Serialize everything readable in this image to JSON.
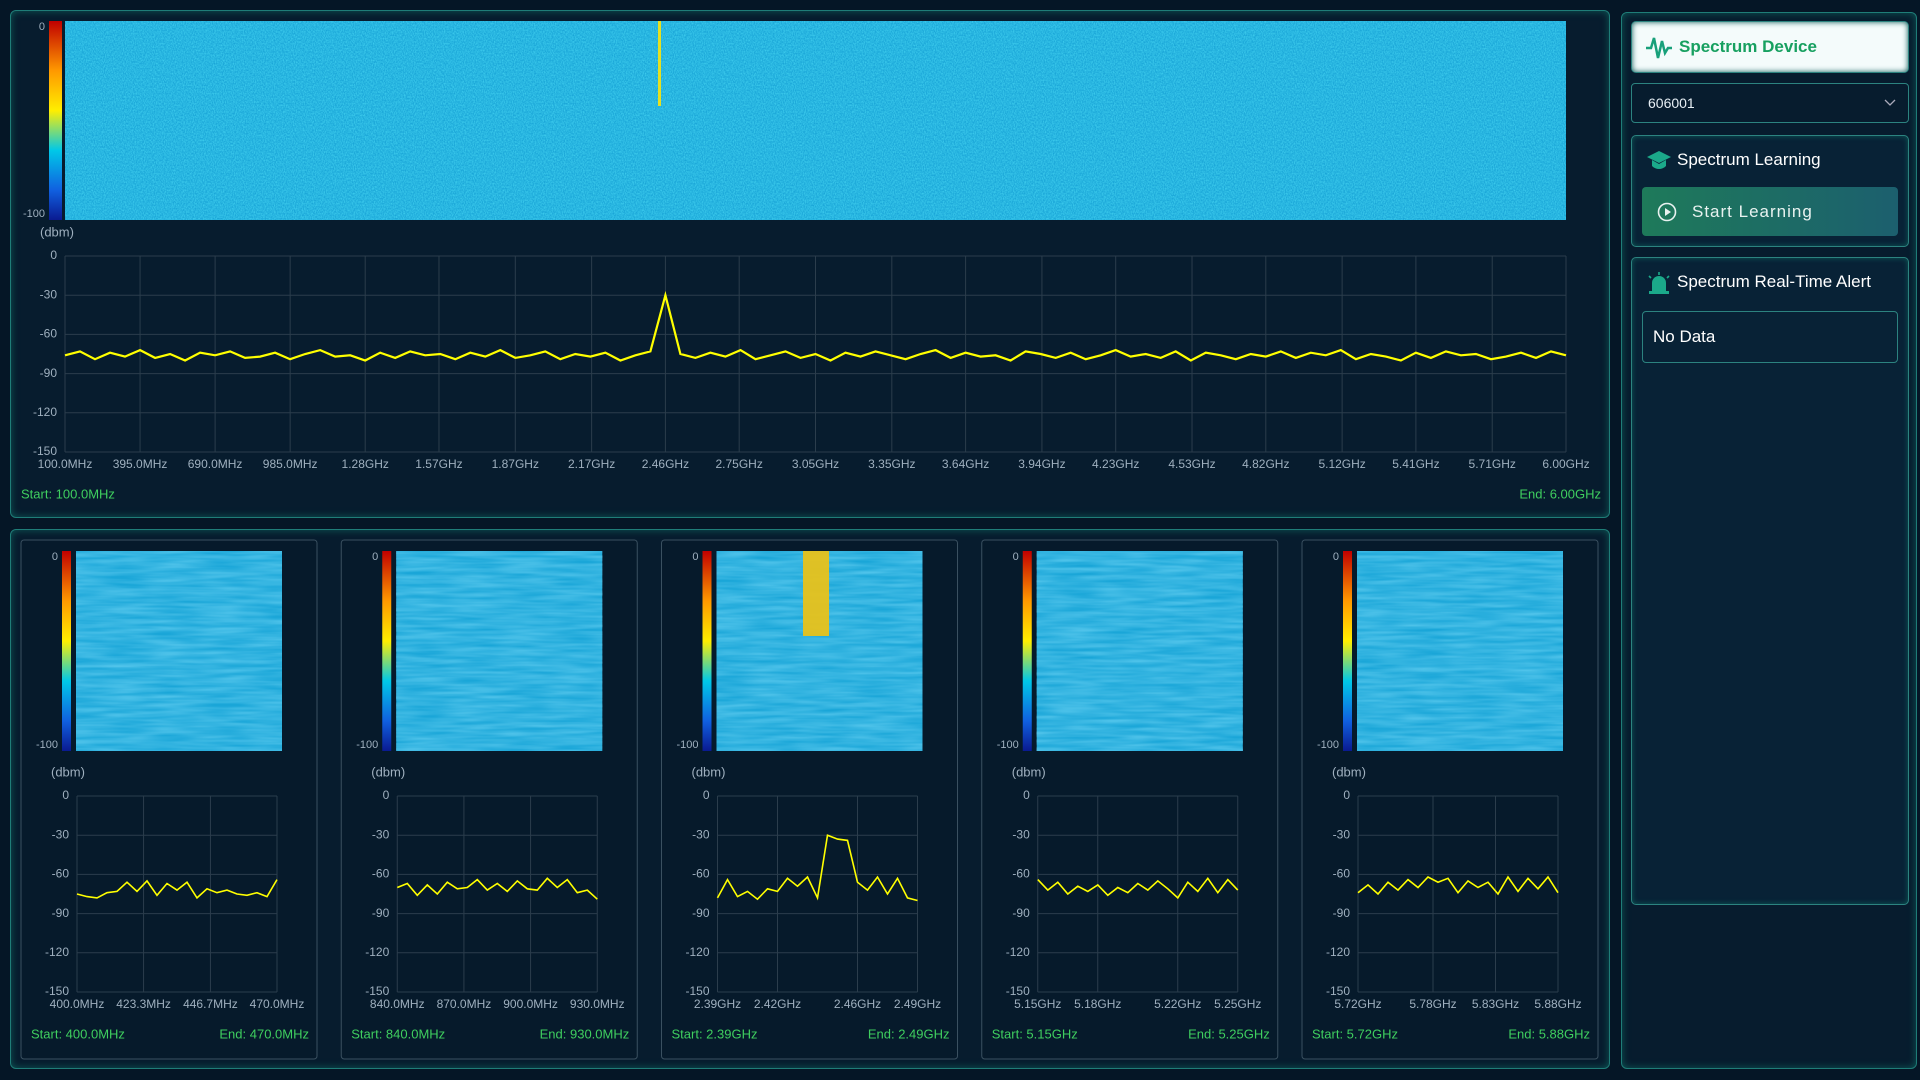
{
  "chart_data": [
    {
      "type": "line",
      "y_label": "(dbm)",
      "colorbar_ticks": [
        0,
        -100
      ],
      "color": "#ffff00",
      "x": [
        100,
        159,
        218,
        277,
        336,
        395,
        454,
        513,
        572,
        631,
        690,
        749,
        808,
        867,
        926,
        985,
        1044,
        1103,
        1162,
        1221,
        1280,
        1339,
        1398,
        1457,
        1516,
        1575,
        1634,
        1693,
        1752,
        1811,
        1870,
        1929,
        1988,
        2047,
        2106,
        2165,
        2224,
        2283,
        2342,
        2401,
        2460,
        2519,
        2578,
        2637,
        2696,
        2755,
        2814,
        2873,
        2932,
        2991,
        3050,
        3109,
        3168,
        3227,
        3286,
        3345,
        3404,
        3463,
        3522,
        3581,
        3640,
        3699,
        3758,
        3817,
        3876,
        3935,
        3994,
        4053,
        4112,
        4171,
        4230,
        4289,
        4348,
        4407,
        4466,
        4525,
        4584,
        4643,
        4702,
        4761,
        4820,
        4879,
        4938,
        4997,
        5056,
        5115,
        5174,
        5233,
        5292,
        5351,
        5410,
        5469,
        5528,
        5587,
        5646,
        5705,
        5764,
        5823,
        5882,
        5941,
        6000
      ],
      "values": [
        -76,
        -73,
        -79,
        -74,
        -77,
        -72,
        -78,
        -75,
        -80,
        -74,
        -76,
        -73,
        -78,
        -77,
        -74,
        -79,
        -75,
        -72,
        -77,
        -76,
        -80,
        -74,
        -78,
        -73,
        -76,
        -75,
        -79,
        -74,
        -77,
        -72,
        -78,
        -76,
        -73,
        -79,
        -75,
        -77,
        -74,
        -80,
        -76,
        -73,
        -30,
        -75,
        -78,
        -74,
        -77,
        -72,
        -79,
        -76,
        -73,
        -78,
        -75,
        -80,
        -74,
        -77,
        -73,
        -76,
        -79,
        -75,
        -72,
        -78,
        -74,
        -77,
        -76,
        -80,
        -73,
        -75,
        -78,
        -74,
        -79,
        -76,
        -72,
        -77,
        -75,
        -78,
        -73,
        -80,
        -74,
        -76,
        -79,
        -75,
        -77,
        -73,
        -78,
        -74,
        -76,
        -72,
        -79,
        -75,
        -77,
        -80,
        -74,
        -78,
        -73,
        -76,
        -75,
        -79,
        -77,
        -74,
        -78,
        -73,
        -76
      ],
      "xlim": [
        100,
        6000
      ],
      "xticks": [
        {
          "value": 100,
          "label": "100.0MHz"
        },
        {
          "value": 395,
          "label": "395.0MHz"
        },
        {
          "value": 690,
          "label": "690.0MHz"
        },
        {
          "value": 985,
          "label": "985.0MHz"
        },
        {
          "value": 1280,
          "label": "1.28GHz"
        },
        {
          "value": 1570,
          "label": "1.57GHz"
        },
        {
          "value": 1870,
          "label": "1.87GHz"
        },
        {
          "value": 2170,
          "label": "2.17GHz"
        },
        {
          "value": 2460,
          "label": "2.46GHz"
        },
        {
          "value": 2750,
          "label": "2.75GHz"
        },
        {
          "value": 3050,
          "label": "3.05GHz"
        },
        {
          "value": 3350,
          "label": "3.35GHz"
        },
        {
          "value": 3640,
          "label": "3.64GHz"
        },
        {
          "value": 3940,
          "label": "3.94GHz"
        },
        {
          "value": 4230,
          "label": "4.23GHz"
        },
        {
          "value": 4530,
          "label": "4.53GHz"
        },
        {
          "value": 4820,
          "label": "4.82GHz"
        },
        {
          "value": 5120,
          "label": "5.12GHz"
        },
        {
          "value": 5410,
          "label": "5.41GHz"
        },
        {
          "value": 5710,
          "label": "5.71GHz"
        },
        {
          "value": 6000,
          "label": "6.00GHz"
        }
      ],
      "ylim": [
        -150,
        0
      ],
      "yticks": [
        0,
        -30,
        -60,
        -90,
        -120,
        -150
      ],
      "grid": true,
      "start": "Start: 100.0MHz",
      "end": "End: 6.00GHz"
    },
    {
      "type": "line",
      "y_label": "(dbm)",
      "colorbar_ticks": [
        0,
        -100
      ],
      "color": "#ffff00",
      "x": [
        400,
        403.5,
        407,
        410.5,
        414,
        417.5,
        421,
        424.5,
        428,
        431.5,
        435,
        438.5,
        442,
        445.5,
        449,
        452.5,
        456,
        459.5,
        463,
        466.5,
        470
      ],
      "values": [
        -75,
        -77,
        -78,
        -74,
        -73,
        -66,
        -73,
        -65,
        -76,
        -67,
        -72,
        -66,
        -78,
        -71,
        -74,
        -72,
        -75,
        -76,
        -74,
        -77,
        -64
      ],
      "xlim": [
        400,
        470
      ],
      "xticks": [
        {
          "value": 400,
          "label": "400.0MHz"
        },
        {
          "value": 423.3,
          "label": "423.3MHz"
        },
        {
          "value": 446.7,
          "label": "446.7MHz"
        },
        {
          "value": 470,
          "label": "470.0MHz"
        }
      ],
      "ylim": [
        -150,
        0
      ],
      "yticks": [
        0,
        -30,
        -60,
        -90,
        -120,
        -150
      ],
      "grid": true,
      "start": "Start: 400.0MHz",
      "end": "End: 470.0MHz"
    },
    {
      "type": "line",
      "y_label": "(dbm)",
      "colorbar_ticks": [
        0,
        -100
      ],
      "color": "#ffff00",
      "x": [
        840,
        844.5,
        849,
        853.5,
        858,
        862.5,
        867,
        871.5,
        876,
        880.5,
        885,
        889.5,
        894,
        898.5,
        903,
        907.5,
        912,
        916.5,
        921,
        925.5,
        930
      ],
      "values": [
        -70,
        -67,
        -76,
        -68,
        -75,
        -66,
        -71,
        -70,
        -64,
        -72,
        -67,
        -73,
        -65,
        -71,
        -72,
        -63,
        -70,
        -64,
        -74,
        -72,
        -79
      ],
      "xlim": [
        840,
        930
      ],
      "xticks": [
        {
          "value": 840,
          "label": "840.0MHz"
        },
        {
          "value": 870,
          "label": "870.0MHz"
        },
        {
          "value": 900,
          "label": "900.0MHz"
        },
        {
          "value": 930,
          "label": "930.0MHz"
        }
      ],
      "ylim": [
        -150,
        0
      ],
      "yticks": [
        0,
        -30,
        -60,
        -90,
        -120,
        -150
      ],
      "grid": true,
      "start": "Start: 840.0MHz",
      "end": "End: 930.0MHz"
    },
    {
      "type": "line",
      "y_label": "(dbm)",
      "colorbar_ticks": [
        0,
        -100
      ],
      "color": "#ffff00",
      "x": [
        2390,
        2395,
        2400,
        2405,
        2410,
        2415,
        2420,
        2425,
        2430,
        2435,
        2440,
        2445,
        2450,
        2455,
        2460,
        2465,
        2470,
        2475,
        2480,
        2485,
        2490
      ],
      "values": [
        -78,
        -64,
        -77,
        -73,
        -79,
        -71,
        -73,
        -63,
        -69,
        -62,
        -78,
        -30,
        -33,
        -34,
        -66,
        -72,
        -62,
        -75,
        -63,
        -78,
        -80
      ],
      "xlim": [
        2390,
        2490
      ],
      "xticks": [
        {
          "value": 2390,
          "label": "2.39GHz"
        },
        {
          "value": 2420,
          "label": "2.42GHz"
        },
        {
          "value": 2460,
          "label": "2.46GHz"
        },
        {
          "value": 2490,
          "label": "2.49GHz"
        }
      ],
      "ylim": [
        -150,
        0
      ],
      "yticks": [
        0,
        -30,
        -60,
        -90,
        -120,
        -150
      ],
      "grid": true,
      "start": "Start: 2.39GHz",
      "end": "End: 2.49GHz"
    },
    {
      "type": "line",
      "y_label": "(dbm)",
      "colorbar_ticks": [
        0,
        -100
      ],
      "color": "#ffff00",
      "x": [
        5150,
        5155,
        5160,
        5165,
        5170,
        5175,
        5180,
        5185,
        5190,
        5195,
        5200,
        5205,
        5210,
        5215,
        5220,
        5225,
        5230,
        5235,
        5240,
        5245,
        5250
      ],
      "values": [
        -64,
        -72,
        -66,
        -75,
        -69,
        -73,
        -68,
        -76,
        -70,
        -74,
        -67,
        -72,
        -65,
        -71,
        -78,
        -66,
        -73,
        -63,
        -74,
        -64,
        -72
      ],
      "xlim": [
        5150,
        5250
      ],
      "xticks": [
        {
          "value": 5150,
          "label": "5.15GHz"
        },
        {
          "value": 5180,
          "label": "5.18GHz"
        },
        {
          "value": 5220,
          "label": "5.22GHz"
        },
        {
          "value": 5250,
          "label": "5.25GHz"
        }
      ],
      "ylim": [
        -150,
        0
      ],
      "yticks": [
        0,
        -30,
        -60,
        -90,
        -120,
        -150
      ],
      "grid": true,
      "start": "Start: 5.15GHz",
      "end": "End: 5.25GHz"
    },
    {
      "type": "line",
      "y_label": "(dbm)",
      "colorbar_ticks": [
        0,
        -100
      ],
      "color": "#ffff00",
      "x": [
        5720,
        5728,
        5736,
        5744,
        5752,
        5760,
        5768,
        5776,
        5784,
        5792,
        5800,
        5808,
        5816,
        5824,
        5832,
        5840,
        5848,
        5856,
        5864,
        5872,
        5880
      ],
      "values": [
        -74,
        -68,
        -75,
        -66,
        -72,
        -64,
        -70,
        -62,
        -66,
        -63,
        -74,
        -65,
        -70,
        -66,
        -75,
        -62,
        -73,
        -63,
        -71,
        -62,
        -74
      ],
      "xlim": [
        5720,
        5880
      ],
      "xticks": [
        {
          "value": 5720,
          "label": "5.72GHz"
        },
        {
          "value": 5780,
          "label": "5.78GHz"
        },
        {
          "value": 5830,
          "label": "5.83GHz"
        },
        {
          "value": 5880,
          "label": "5.88GHz"
        }
      ],
      "ylim": [
        -150,
        0
      ],
      "yticks": [
        0,
        -30,
        -60,
        -90,
        -120,
        -150
      ],
      "grid": true,
      "start": "Start: 5.72GHz",
      "end": "End: 5.88GHz"
    }
  ],
  "sidebar": {
    "device_title": "Spectrum Device",
    "device_id": "606001",
    "learning_title": "Spectrum Learning",
    "learning_button": "Start Learning",
    "alert_title": "Spectrum Real-Time Alert",
    "alert_message": "No Data"
  }
}
